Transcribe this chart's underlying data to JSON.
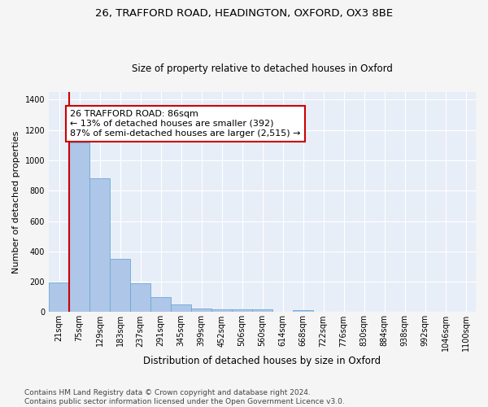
{
  "title1": "26, TRAFFORD ROAD, HEADINGTON, OXFORD, OX3 8BE",
  "title2": "Size of property relative to detached houses in Oxford",
  "xlabel": "Distribution of detached houses by size in Oxford",
  "ylabel": "Number of detached properties",
  "bar_labels": [
    "21sqm",
    "75sqm",
    "129sqm",
    "183sqm",
    "237sqm",
    "291sqm",
    "345sqm",
    "399sqm",
    "452sqm",
    "506sqm",
    "560sqm",
    "614sqm",
    "668sqm",
    "722sqm",
    "776sqm",
    "830sqm",
    "884sqm",
    "938sqm",
    "992sqm",
    "1046sqm",
    "1100sqm"
  ],
  "bar_values": [
    195,
    1120,
    880,
    350,
    190,
    100,
    53,
    25,
    20,
    17,
    17,
    0,
    12,
    0,
    0,
    0,
    0,
    0,
    0,
    0,
    0
  ],
  "bar_color": "#aec6e8",
  "bar_edge_color": "#6aaad4",
  "annotation_text": "26 TRAFFORD ROAD: 86sqm\n← 13% of detached houses are smaller (392)\n87% of semi-detached houses are larger (2,515) →",
  "annotation_box_color": "#ffffff",
  "annotation_box_edge_color": "#cc0000",
  "vline_color": "#cc0000",
  "ylim": [
    0,
    1450
  ],
  "footer": "Contains HM Land Registry data © Crown copyright and database right 2024.\nContains public sector information licensed under the Open Government Licence v3.0.",
  "plot_bg_color": "#e8eef8",
  "fig_bg_color": "#f5f5f5",
  "grid_color": "#ffffff",
  "title1_fontsize": 9.5,
  "title2_fontsize": 8.5,
  "xlabel_fontsize": 8.5,
  "ylabel_fontsize": 8,
  "tick_fontsize": 7,
  "annotation_fontsize": 8,
  "footer_fontsize": 6.5
}
